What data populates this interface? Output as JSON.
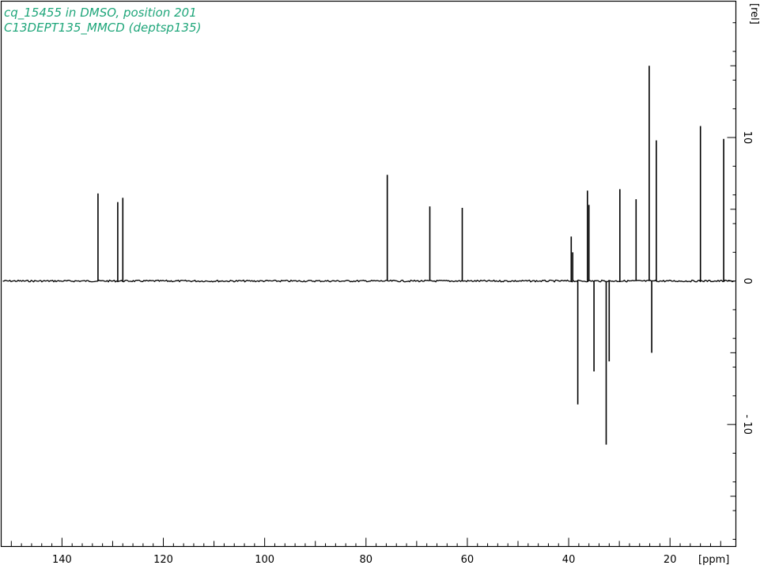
{
  "header": {
    "line1": "cq_15455 in DMSO, position 201",
    "line2": "C13DEPT135_MMCD (deptsp135)",
    "color": "#1fa67a"
  },
  "chart_data": {
    "type": "line",
    "xlabel": "[ppm]",
    "ylabel": "[rel]",
    "xlim": [
      152,
      7
    ],
    "ylim": [
      -18.5,
      19.5
    ],
    "x_ticks": [
      140,
      120,
      100,
      80,
      60,
      40,
      20
    ],
    "x_tick_labels": [
      "140",
      "120",
      "100",
      "80",
      "60",
      "40",
      "20"
    ],
    "y_ticks": [
      10,
      0,
      -10
    ],
    "y_tick_labels": [
      "10",
      "0",
      "- 10"
    ],
    "grid": false,
    "line_color": "#000000",
    "peaks": [
      {
        "x": 132.9,
        "y": 6.1
      },
      {
        "x": 129.0,
        "y": 5.5
      },
      {
        "x": 128.0,
        "y": 5.8
      },
      {
        "x": 75.8,
        "y": 7.4
      },
      {
        "x": 67.4,
        "y": 5.2
      },
      {
        "x": 61.0,
        "y": 5.1
      },
      {
        "x": 39.5,
        "y": 3.1
      },
      {
        "x": 39.2,
        "y": 2.0
      },
      {
        "x": 38.2,
        "y": -8.6
      },
      {
        "x": 36.3,
        "y": 6.3
      },
      {
        "x": 36.0,
        "y": 5.3
      },
      {
        "x": 35.0,
        "y": -6.3
      },
      {
        "x": 32.6,
        "y": -11.4
      },
      {
        "x": 32.0,
        "y": -5.6
      },
      {
        "x": 29.9,
        "y": 6.4
      },
      {
        "x": 26.7,
        "y": 5.7
      },
      {
        "x": 24.1,
        "y": 15.0
      },
      {
        "x": 23.6,
        "y": -5.0
      },
      {
        "x": 22.7,
        "y": 9.8
      },
      {
        "x": 14.0,
        "y": 10.8
      },
      {
        "x": 9.4,
        "y": 9.9
      }
    ]
  }
}
